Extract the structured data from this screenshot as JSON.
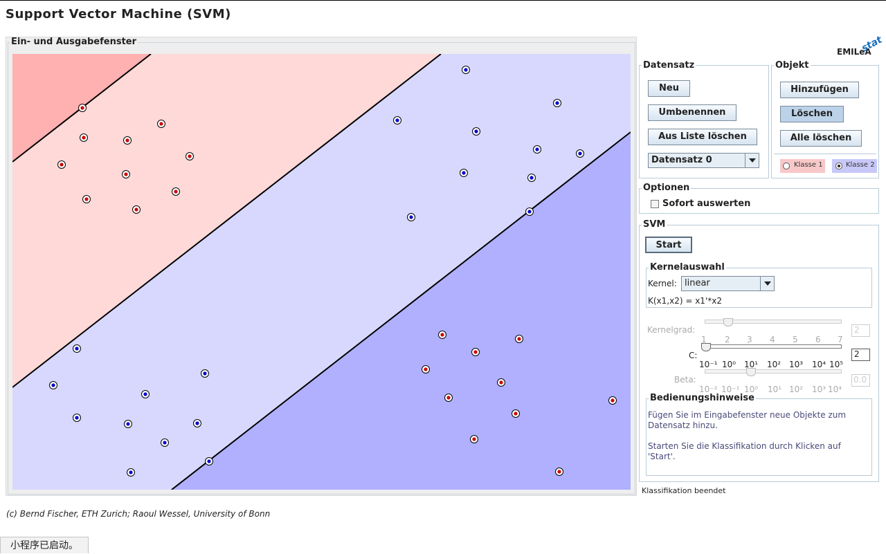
{
  "page_title": "Support Vector Machine (SVM)",
  "io_panel": {
    "legend": "Ein- und Ausgabefenster"
  },
  "logo": {
    "text": "EMILeA",
    "overlay": "stat"
  },
  "datensatz": {
    "legend": "Datensatz",
    "btn_neu": "Neu",
    "btn_umbenennen": "Umbenennen",
    "btn_aus_liste": "Aus Liste löschen",
    "select_value": "Datensatz 0"
  },
  "objekt": {
    "legend": "Objekt",
    "btn_hinzufuegen": "Hinzufügen",
    "btn_loeschen": "Löschen",
    "btn_alle": "Alle löschen",
    "klasse1": "Klasse 1",
    "klasse2": "Klasse 2",
    "selected_class": "Klasse 2"
  },
  "optionen": {
    "legend": "Optionen",
    "sofort": "Sofort auswerten",
    "sofort_checked": false
  },
  "svm": {
    "legend": "SVM",
    "start": "Start",
    "kernel_legend": "Kernelauswahl",
    "kernel_label": "Kernel:",
    "kernel_value": "linear",
    "kernel_formula": "K(x1,x2) = x1'*x2",
    "kernelgrad_label": "Kernelgrad:",
    "kernelgrad_value": "2",
    "kernelgrad_ticks": [
      "1",
      "2",
      "3",
      "4",
      "5",
      "6",
      "7"
    ],
    "c_label": "C:",
    "c_value": "2",
    "c_ticks": [
      "10⁻¹",
      "10⁰",
      "10¹",
      "10²",
      "10³",
      "10⁴",
      "10⁵"
    ],
    "beta_label": "Beta:",
    "beta_value": "0.0",
    "beta_ticks": [
      "10⁻²",
      "10⁻¹",
      "10⁰",
      "10¹",
      "10²",
      "10³",
      "10⁴"
    ],
    "hints_legend": "Bedienungshinweise",
    "hint1": "Fügen Sie im Eingabefenster neue Objekte zum Datensatz hinzu.",
    "hint2": "Starten Sie die Klassifikation durch Klicken auf 'Start'."
  },
  "status": "Klassifikation beendet",
  "footer": "(c) Bernd Fischer, ETH Zurich; Raoul Wessel, University of Bonn",
  "applet_status": "小程序已启动。",
  "colors": {
    "class1_point": "#cc0000",
    "class2_point": "#0000cc",
    "region_class1_outer": "#ffb0b0",
    "region_class1_margin": "#ffd8d8",
    "region_class2_margin": "#d8d8ff",
    "region_class2_outer": "#b0b0ff",
    "klasse1_bg": "#f8c8c8",
    "klasse2_bg": "#c8c8f8"
  },
  "points": {
    "class1": [
      [
        119,
        156
      ],
      [
        121,
        199
      ],
      [
        184,
        203
      ],
      [
        233,
        179
      ],
      [
        89,
        238
      ],
      [
        182,
        252
      ],
      [
        274,
        226
      ],
      [
        125,
        288
      ],
      [
        197,
        303
      ],
      [
        254,
        277
      ],
      [
        639,
        484
      ],
      [
        750,
        490
      ],
      [
        687,
        509
      ],
      [
        615,
        534
      ],
      [
        724,
        553
      ],
      [
        648,
        575
      ],
      [
        885,
        579
      ],
      [
        745,
        598
      ],
      [
        685,
        635
      ],
      [
        808,
        682
      ]
    ],
    "class2": [
      [
        673,
        101
      ],
      [
        805,
        149
      ],
      [
        574,
        174
      ],
      [
        688,
        190
      ],
      [
        776,
        216
      ],
      [
        838,
        222
      ],
      [
        670,
        250
      ],
      [
        768,
        257
      ],
      [
        594,
        314
      ],
      [
        765,
        306
      ],
      [
        111,
        504
      ],
      [
        296,
        540
      ],
      [
        77,
        557
      ],
      [
        210,
        570
      ],
      [
        111,
        604
      ],
      [
        185,
        613
      ],
      [
        285,
        612
      ],
      [
        238,
        640
      ],
      [
        302,
        667
      ],
      [
        189,
        683
      ]
    ]
  }
}
